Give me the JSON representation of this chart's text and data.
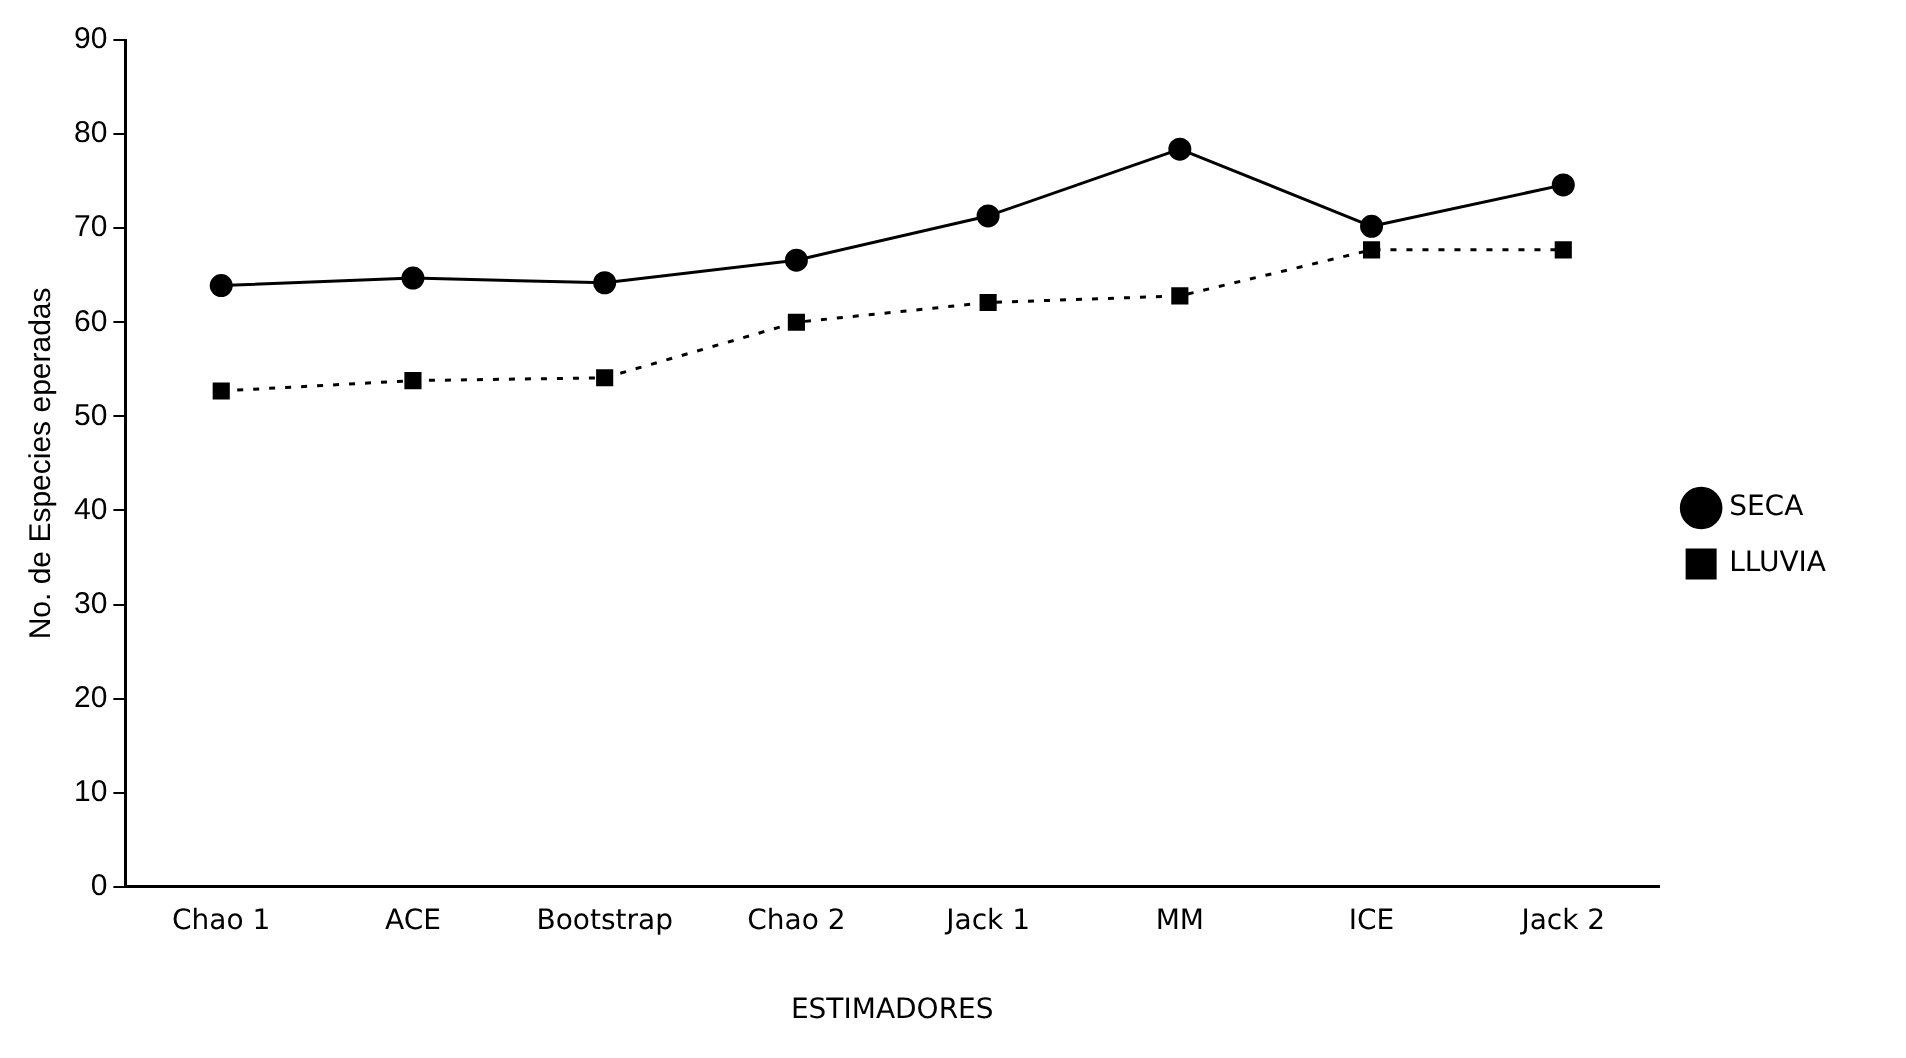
{
  "chart_data": {
    "type": "line",
    "xlabel": "ESTIMADORES",
    "ylabel": "No. de Especies eperadas",
    "categories": [
      "Chao 1",
      "ACE",
      "Bootstrap",
      "Chao 2",
      "Jack 1",
      "MM",
      "ICE",
      "Jack 2"
    ],
    "series": [
      {
        "name": "SECA",
        "color": "#000000",
        "marker": "circle",
        "line_style": "solid",
        "values": [
          63.9,
          64.7,
          64.2,
          66.6,
          71.3,
          78.4,
          70.2,
          74.6
        ]
      },
      {
        "name": "LLUVIA",
        "color": "#000000",
        "marker": "square",
        "line_style": "dotted",
        "values": [
          52.7,
          53.8,
          54.1,
          60.0,
          62.1,
          62.8,
          67.7,
          67.7
        ]
      }
    ],
    "ylim": [
      0,
      90
    ],
    "yticks": [
      0,
      10,
      20,
      30,
      40,
      50,
      60,
      70,
      80,
      90
    ],
    "grid": false,
    "legend": "right"
  }
}
